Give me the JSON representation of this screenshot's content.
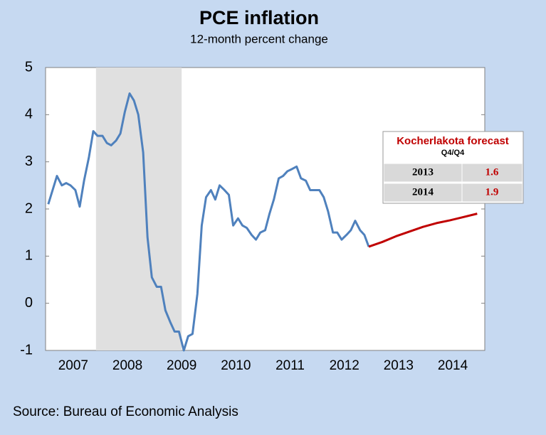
{
  "chart_data": {
    "type": "line",
    "title": "PCE inflation",
    "subtitle": "12-month percent change",
    "xlim": [
      2006.99,
      2015.09
    ],
    "ylim": [
      -1,
      5
    ],
    "yticks": [
      -1,
      0,
      1,
      2,
      3,
      4,
      5
    ],
    "xticks": [
      {
        "value": 2007.5,
        "label": "2007"
      },
      {
        "value": 2008.5,
        "label": "2008"
      },
      {
        "value": 2009.5,
        "label": "2009"
      },
      {
        "value": 2010.5,
        "label": "2010"
      },
      {
        "value": 2011.5,
        "label": "2011"
      },
      {
        "value": 2012.5,
        "label": "2012"
      },
      {
        "value": 2013.5,
        "label": "2013"
      },
      {
        "value": 2014.5,
        "label": "2014"
      }
    ],
    "shaded_spans": [
      [
        2007.92,
        2009.5
      ]
    ],
    "series": [
      {
        "color": "#4f81bd",
        "x": [
          2007.04,
          2007.12,
          2007.2,
          2007.29,
          2007.37,
          2007.45,
          2007.54,
          2007.62,
          2007.7,
          2007.79,
          2007.87,
          2007.95,
          2008.04,
          2008.12,
          2008.2,
          2008.29,
          2008.37,
          2008.45,
          2008.54,
          2008.62,
          2008.7,
          2008.79,
          2008.87,
          2008.95,
          2009.04,
          2009.12,
          2009.2,
          2009.29,
          2009.37,
          2009.45,
          2009.54,
          2009.62,
          2009.7,
          2009.79,
          2009.87,
          2009.95,
          2010.04,
          2010.12,
          2010.2,
          2010.29,
          2010.37,
          2010.45,
          2010.54,
          2010.62,
          2010.7,
          2010.79,
          2010.87,
          2010.95,
          2011.04,
          2011.12,
          2011.2,
          2011.29,
          2011.37,
          2011.45,
          2011.54,
          2011.62,
          2011.7,
          2011.79,
          2011.87,
          2011.95,
          2012.04,
          2012.12,
          2012.2,
          2012.29,
          2012.37,
          2012.45,
          2012.54,
          2012.62,
          2012.7,
          2012.79,
          2012.87,
          2012.95
        ],
        "values": [
          2.1,
          2.4,
          2.7,
          2.5,
          2.55,
          2.5,
          2.4,
          2.05,
          2.6,
          3.1,
          3.65,
          3.55,
          3.55,
          3.4,
          3.35,
          3.45,
          3.6,
          4.05,
          4.45,
          4.3,
          4.0,
          3.2,
          1.4,
          0.55,
          0.35,
          0.35,
          -0.15,
          -0.4,
          -0.6,
          -0.6,
          -1.0,
          -0.7,
          -0.65,
          0.2,
          1.65,
          2.25,
          2.4,
          2.2,
          2.5,
          2.4,
          2.3,
          1.65,
          1.8,
          1.65,
          1.6,
          1.45,
          1.35,
          1.5,
          1.55,
          1.9,
          2.2,
          2.65,
          2.7,
          2.8,
          2.85,
          2.9,
          2.65,
          2.6,
          2.4,
          2.4,
          2.4,
          2.25,
          1.95,
          1.5,
          1.5,
          1.35,
          1.45,
          1.55,
          1.75,
          1.55,
          1.45,
          1.2
        ]
      },
      {
        "color": "#c00000",
        "x": [
          2012.95,
          2013.2,
          2013.45,
          2013.7,
          2013.95,
          2014.2,
          2014.45,
          2014.7,
          2014.95
        ],
        "values": [
          1.2,
          1.3,
          1.42,
          1.52,
          1.62,
          1.7,
          1.76,
          1.83,
          1.9
        ]
      }
    ]
  },
  "forecast_table": {
    "title": "Kocherlakota forecast",
    "subtitle": "Q4/Q4",
    "rows": [
      [
        "2013",
        1.6
      ],
      [
        "2014",
        1.9
      ]
    ]
  },
  "source": "Source: Bureau of Economic Analysis"
}
